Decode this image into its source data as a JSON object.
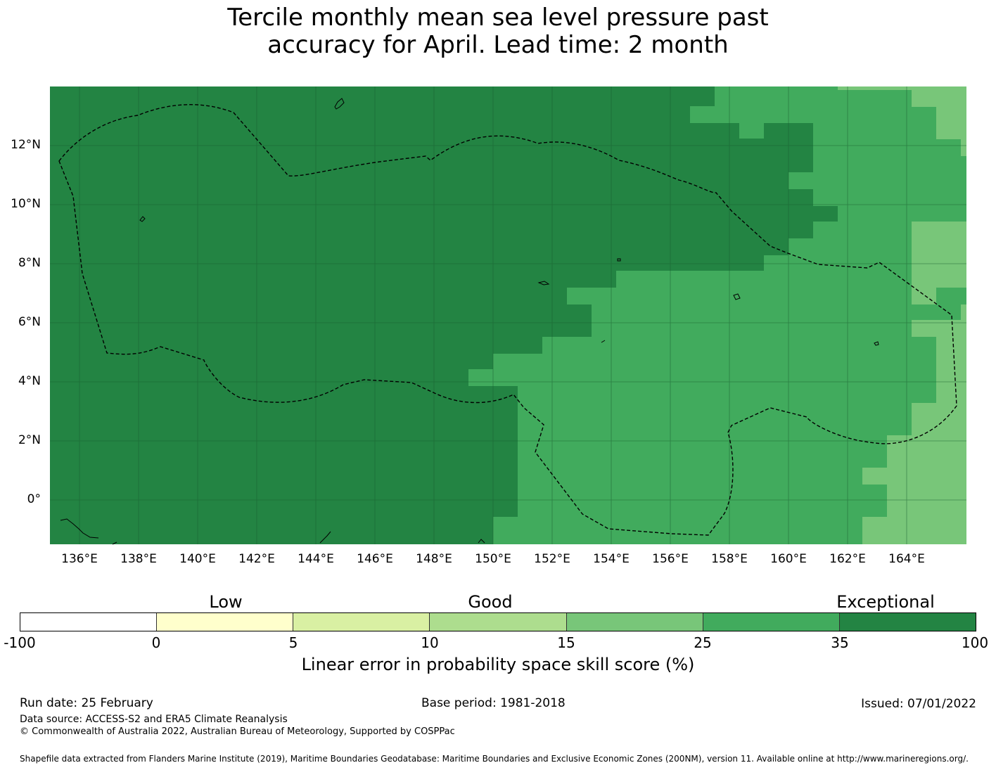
{
  "title": {
    "line1": "Tercile monthly mean sea level pressure past",
    "line2": "accuracy for April. Lead time: 2 month"
  },
  "map": {
    "lat_ticks": [
      "12°N",
      "10°N",
      "8°N",
      "6°N",
      "4°N",
      "2°N",
      "0°"
    ],
    "lon_ticks": [
      "136°E",
      "138°E",
      "140°E",
      "142°E",
      "144°E",
      "146°E",
      "148°E",
      "150°E",
      "152°E",
      "154°E",
      "156°E",
      "158°E",
      "160°E",
      "162°E",
      "164°E"
    ],
    "colors": {
      "exceptional": "#238443",
      "very_good": "#41ab5d",
      "good_high": "#78c679"
    }
  },
  "legend": {
    "categories": [
      "Low",
      "Good",
      "Exceptional"
    ],
    "bins": [
      {
        "from": -100,
        "to": 0,
        "color": "#ffffff"
      },
      {
        "from": 0,
        "to": 5,
        "color": "#ffffcc"
      },
      {
        "from": 5,
        "to": 10,
        "color": "#d9f0a3"
      },
      {
        "from": 10,
        "to": 15,
        "color": "#addd8e"
      },
      {
        "from": 15,
        "to": 25,
        "color": "#78c679"
      },
      {
        "from": 25,
        "to": 35,
        "color": "#41ab5d"
      },
      {
        "from": 35,
        "to": 100,
        "color": "#238443"
      }
    ],
    "tick_labels": [
      "-100",
      "0",
      "5",
      "10",
      "15",
      "25",
      "35",
      "100"
    ],
    "axis_label": "Linear error in probability space skill score (%)"
  },
  "footer": {
    "run_date": "Run date: 25 February",
    "base_period": "Base period: 1981-2018",
    "issued": "Issued: 07/01/2022",
    "data_source": "Data source: ACCESS-S2 and ERA5 Climate Reanalysis",
    "copyright": "© Commonwealth of Australia 2022, Australian Bureau of Meteorology, Supported by COSPPac",
    "shapefile": "Shapefile data extracted from Flanders Marine Institute (2019), Maritime Boundaries Geodatabase: Maritime Boundaries and Exclusive Economic Zones (200NM), version 11. Available online at http://www.marineregions.org/."
  }
}
